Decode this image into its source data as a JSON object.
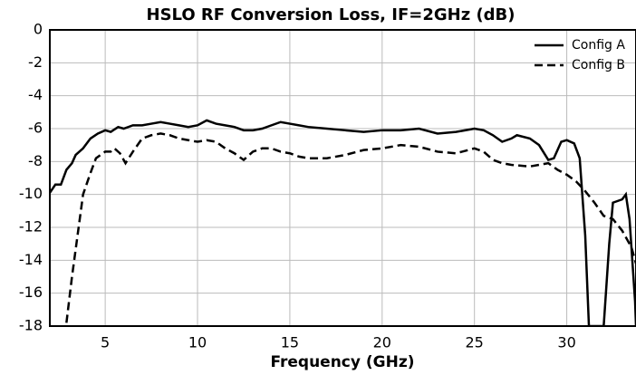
{
  "chart_data": {
    "type": "line",
    "title": "HSLO RF Conversion Loss, IF=2GHz (dB)",
    "xlabel": "Frequency (GHz)",
    "xlim": [
      2,
      33.75
    ],
    "xticks": [
      5,
      10,
      15,
      20,
      25,
      30
    ],
    "ylim": [
      -18,
      0
    ],
    "yticks": [
      0,
      -2,
      -4,
      -6,
      -8,
      -10,
      -12,
      -14,
      -16,
      -18
    ],
    "grid": true,
    "legend": "upper right",
    "series": [
      {
        "name": "Config A",
        "color": "#000000",
        "dash": "solid",
        "x": [
          2.0,
          2.3,
          2.6,
          2.9,
          3.2,
          3.4,
          3.8,
          4.2,
          4.6,
          5.0,
          5.3,
          5.7,
          6.0,
          6.5,
          7.0,
          7.5,
          8.0,
          8.5,
          9.0,
          9.5,
          10.0,
          10.5,
          11.0,
          11.5,
          12.0,
          12.5,
          13.0,
          13.5,
          14.0,
          14.5,
          15.0,
          15.5,
          16.0,
          17.0,
          18.0,
          19.0,
          20.0,
          21.0,
          22.0,
          23.0,
          24.0,
          25.0,
          25.5,
          26.0,
          26.5,
          27.0,
          27.3,
          28.0,
          28.5,
          29.0,
          29.3,
          29.7,
          30.0,
          30.4,
          30.7,
          31.0,
          31.2,
          32.0,
          32.3,
          32.5,
          33.0,
          33.2,
          33.4,
          33.7,
          33.75
        ],
        "values": [
          -9.9,
          -9.4,
          -9.4,
          -8.5,
          -8.1,
          -7.6,
          -7.2,
          -6.6,
          -6.3,
          -6.1,
          -6.2,
          -5.9,
          -6.0,
          -5.8,
          -5.8,
          -5.7,
          -5.6,
          -5.7,
          -5.8,
          -5.9,
          -5.8,
          -5.5,
          -5.7,
          -5.8,
          -5.9,
          -6.1,
          -6.1,
          -6.0,
          -5.8,
          -5.6,
          -5.7,
          -5.8,
          -5.9,
          -6.0,
          -6.1,
          -6.2,
          -6.1,
          -6.1,
          -6.0,
          -6.3,
          -6.2,
          -6.0,
          -6.1,
          -6.4,
          -6.8,
          -6.6,
          -6.4,
          -6.6,
          -7.0,
          -7.9,
          -7.8,
          -6.8,
          -6.7,
          -6.9,
          -7.8,
          -12.5,
          -18,
          -18,
          -13,
          -10.5,
          -10.3,
          -10.0,
          -11.5,
          -16.5,
          -18
        ]
      },
      {
        "name": "Config B",
        "color": "#000000",
        "dash": "dashed",
        "x": [
          2.9,
          3.2,
          3.5,
          3.8,
          4.2,
          4.5,
          5.0,
          5.3,
          5.5,
          5.8,
          6.1,
          6.5,
          7.0,
          7.5,
          8.0,
          8.5,
          9.0,
          9.5,
          10.0,
          10.5,
          11.0,
          11.5,
          12.0,
          12.5,
          13.0,
          13.5,
          14.0,
          14.5,
          15.0,
          15.5,
          16.0,
          17.0,
          18.0,
          19.0,
          20.0,
          21.0,
          22.0,
          23.0,
          24.0,
          25.0,
          25.5,
          26.0,
          26.5,
          27.0,
          28.0,
          29.0,
          29.5,
          30.0,
          30.5,
          31.0,
          31.5,
          32.0,
          32.5,
          33.0,
          33.5,
          33.75
        ],
        "values": [
          -17.8,
          -15,
          -12.5,
          -10,
          -8.7,
          -7.8,
          -7.4,
          -7.4,
          -7.2,
          -7.5,
          -8.1,
          -7.4,
          -6.6,
          -6.4,
          -6.3,
          -6.4,
          -6.6,
          -6.7,
          -6.8,
          -6.7,
          -6.8,
          -7.2,
          -7.5,
          -7.9,
          -7.4,
          -7.2,
          -7.2,
          -7.4,
          -7.5,
          -7.7,
          -7.8,
          -7.8,
          -7.6,
          -7.3,
          -7.2,
          -7.0,
          -7.1,
          -7.4,
          -7.5,
          -7.2,
          -7.4,
          -7.9,
          -8.1,
          -8.2,
          -8.3,
          -8.1,
          -8.5,
          -8.8,
          -9.2,
          -9.8,
          -10.5,
          -11.3,
          -11.5,
          -12.2,
          -13.2,
          -14.2
        ]
      }
    ]
  }
}
